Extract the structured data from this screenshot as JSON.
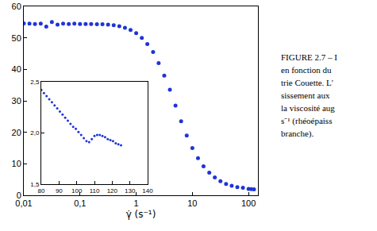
{
  "chart_data": [
    {
      "type": "scatter",
      "marker": "circle",
      "color": "#1f35d6",
      "log": "x",
      "grid": false,
      "x_label": "γ̇ (s⁻¹)",
      "annotations": [
        "FIGURE 2.7 – I",
        "en fonction du",
        "trie Couette. L'",
        "sissement aux",
        "la viscosité aug",
        "s⁻¹ (rhéoépaiss",
        "branche)."
      ],
      "x": [
        0.01,
        0.0126,
        0.0158,
        0.02,
        0.0251,
        0.0316,
        0.0398,
        0.0501,
        0.0631,
        0.0794,
        0.1,
        0.126,
        0.158,
        0.2,
        0.251,
        0.316,
        0.398,
        0.501,
        0.631,
        0.794,
        1,
        1.26,
        1.58,
        2,
        2.51,
        3.16,
        3.98,
        5.01,
        6.31,
        7.94,
        10,
        12.6,
        15.8,
        20,
        25.1,
        31.6,
        39.8,
        50.1,
        63.1,
        79.4,
        100,
        112,
        125
      ],
      "values": [
        54.6,
        54.5,
        54.4,
        54.5,
        53.6,
        55.0,
        54.2,
        54.5,
        54.4,
        54.5,
        54.4,
        54.4,
        54.4,
        54.3,
        54.3,
        54.2,
        54.0,
        53.7,
        53.2,
        52.5,
        51.5,
        50.0,
        48.0,
        45.5,
        42.0,
        38.0,
        33.5,
        28.5,
        23.5,
        19.0,
        15.0,
        11.8,
        9.2,
        7.2,
        5.7,
        4.5,
        3.6,
        3.0,
        2.6,
        2.4,
        2.02,
        1.98,
        1.88
      ],
      "xlim": [
        0.01,
        147
      ],
      "xticks": [
        {
          "value": 0.01,
          "label": "0,01"
        },
        {
          "value": 0.1,
          "label": "0,1"
        },
        1,
        10,
        100
      ],
      "ylim": [
        0,
        60
      ],
      "yticks": [
        0,
        10,
        20,
        30,
        40,
        50,
        60
      ]
    },
    {
      "type": "scatter",
      "marker": "circle",
      "color": "#1f35d6",
      "grid": false,
      "x": [
        80,
        81.5,
        83,
        84.5,
        86,
        87.5,
        89,
        90.5,
        92,
        93.5,
        95,
        96.5,
        98,
        99.5,
        101,
        102.5,
        104,
        105.5,
        107,
        108.5,
        110,
        111.5,
        113,
        114.5,
        116,
        117.5,
        119,
        120.5,
        122,
        123.5,
        125
      ],
      "values": [
        2.42,
        2.39,
        2.36,
        2.33,
        2.3,
        2.27,
        2.24,
        2.21,
        2.18,
        2.15,
        2.12,
        2.09,
        2.06,
        2.04,
        2.01,
        1.98,
        1.95,
        1.92,
        1.91,
        1.94,
        1.97,
        1.98,
        1.98,
        1.97,
        1.96,
        1.94,
        1.93,
        1.92,
        1.9,
        1.89,
        1.88
      ],
      "xlim": [
        80,
        140
      ],
      "xticks": [
        80,
        90,
        100,
        110,
        120,
        130,
        140
      ],
      "ylim": [
        1.5,
        2.5
      ],
      "yticks": [
        {
          "value": 1.5,
          "label": "1,5"
        },
        {
          "value": 2,
          "label": "2,0"
        },
        {
          "value": 2.5,
          "label": "2,5"
        }
      ]
    }
  ]
}
